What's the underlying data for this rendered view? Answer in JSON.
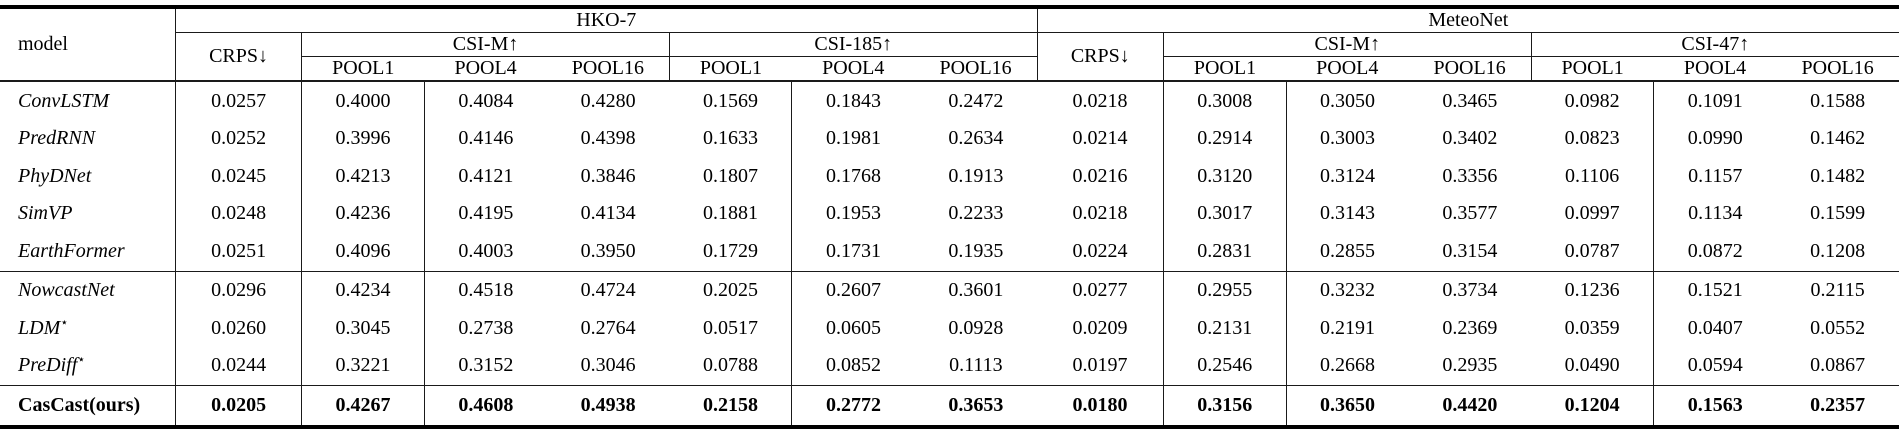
{
  "table": {
    "header": {
      "model": "model",
      "dataset_left": "HKO-7",
      "dataset_right": "MeteoNet",
      "crps": "CRPS↓",
      "hko7": {
        "csi_m": "CSI-M↑",
        "csi_185": "CSI-185↑"
      },
      "meteonet": {
        "csi_m": "CSI-M↑",
        "csi_47": "CSI-47↑"
      },
      "pool": [
        "POOL1",
        "POOL4",
        "POOL16"
      ]
    },
    "rows": [
      {
        "model": "ConvLSTM",
        "sup": "",
        "bold": false,
        "group_end": false,
        "values": [
          "0.0257",
          "0.4000",
          "0.4084",
          "0.4280",
          "0.1569",
          "0.1843",
          "0.2472",
          "0.0218",
          "0.3008",
          "0.3050",
          "0.3465",
          "0.0982",
          "0.1091",
          "0.1588"
        ]
      },
      {
        "model": "PredRNN",
        "sup": "",
        "bold": false,
        "group_end": false,
        "values": [
          "0.0252",
          "0.3996",
          "0.4146",
          "0.4398",
          "0.1633",
          "0.1981",
          "0.2634",
          "0.0214",
          "0.2914",
          "0.3003",
          "0.3402",
          "0.0823",
          "0.0990",
          "0.1462"
        ]
      },
      {
        "model": "PhyDNet",
        "sup": "",
        "bold": false,
        "group_end": false,
        "values": [
          "0.0245",
          "0.4213",
          "0.4121",
          "0.3846",
          "0.1807",
          "0.1768",
          "0.1913",
          "0.0216",
          "0.3120",
          "0.3124",
          "0.3356",
          "0.1106",
          "0.1157",
          "0.1482"
        ]
      },
      {
        "model": "SimVP",
        "sup": "",
        "bold": false,
        "group_end": false,
        "values": [
          "0.0248",
          "0.4236",
          "0.4195",
          "0.4134",
          "0.1881",
          "0.1953",
          "0.2233",
          "0.0218",
          "0.3017",
          "0.3143",
          "0.3577",
          "0.0997",
          "0.1134",
          "0.1599"
        ]
      },
      {
        "model": "EarthFormer",
        "sup": "",
        "bold": false,
        "group_end": true,
        "values": [
          "0.0251",
          "0.4096",
          "0.4003",
          "0.3950",
          "0.1729",
          "0.1731",
          "0.1935",
          "0.0224",
          "0.2831",
          "0.2855",
          "0.3154",
          "0.0787",
          "0.0872",
          "0.1208"
        ]
      },
      {
        "model": "NowcastNet",
        "sup": "",
        "bold": false,
        "group_end": false,
        "values": [
          "0.0296",
          "0.4234",
          "0.4518",
          "0.4724",
          "0.2025",
          "0.2607",
          "0.3601",
          "0.0277",
          "0.2955",
          "0.3232",
          "0.3734",
          "0.1236",
          "0.1521",
          "0.2115"
        ]
      },
      {
        "model": "LDM",
        "sup": "⋆",
        "bold": false,
        "group_end": false,
        "values": [
          "0.0260",
          "0.3045",
          "0.2738",
          "0.2764",
          "0.0517",
          "0.0605",
          "0.0928",
          "0.0209",
          "0.2131",
          "0.2191",
          "0.2369",
          "0.0359",
          "0.0407",
          "0.0552"
        ]
      },
      {
        "model": "PreDiff",
        "sup": "⋆",
        "bold": false,
        "group_end": true,
        "values": [
          "0.0244",
          "0.3221",
          "0.3152",
          "0.3046",
          "0.0788",
          "0.0852",
          "0.1113",
          "0.0197",
          "0.2546",
          "0.2668",
          "0.2935",
          "0.0490",
          "0.0594",
          "0.0867"
        ]
      },
      {
        "model": "CasCast(ours)",
        "sup": "",
        "bold": true,
        "group_end": false,
        "values": [
          "0.0205",
          "0.4267",
          "0.4608",
          "0.4938",
          "0.2158",
          "0.2772",
          "0.3653",
          "0.0180",
          "0.3156",
          "0.3650",
          "0.4420",
          "0.1204",
          "0.1563",
          "0.2357"
        ]
      }
    ]
  }
}
